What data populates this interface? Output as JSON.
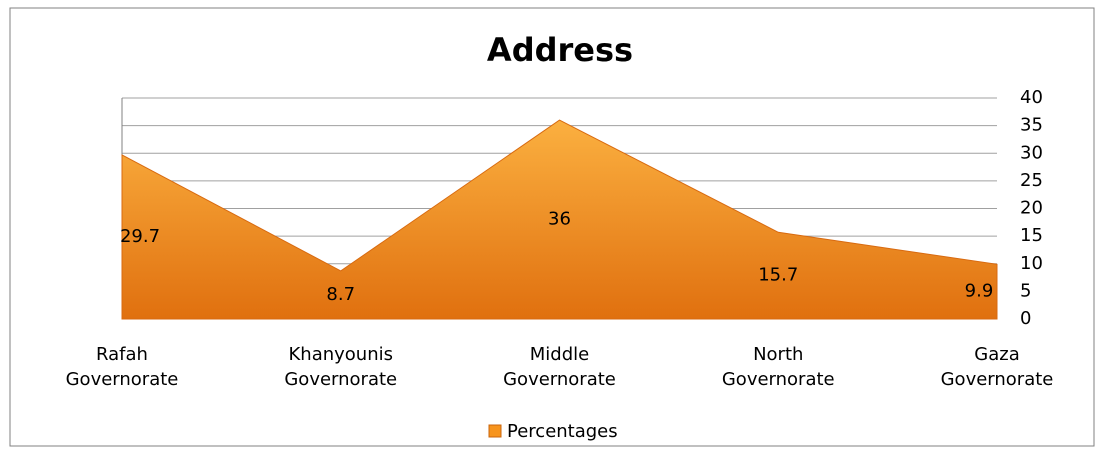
{
  "chart_data": {
    "type": "area",
    "title": "Address",
    "categories": [
      "Rafah Governorate",
      "Khanyounis Governorate",
      "Middle Governorate",
      "North Governorate",
      "Gaza Governorate"
    ],
    "series": [
      {
        "name": "Percentages",
        "color": "#f7941d",
        "values": [
          29.7,
          8.7,
          36,
          15.7,
          9.9
        ]
      }
    ],
    "ylim": [
      0,
      40
    ],
    "yticks": [
      0,
      5,
      10,
      15,
      20,
      25,
      30,
      35,
      40
    ],
    "grid": true,
    "legend": "bottom"
  }
}
